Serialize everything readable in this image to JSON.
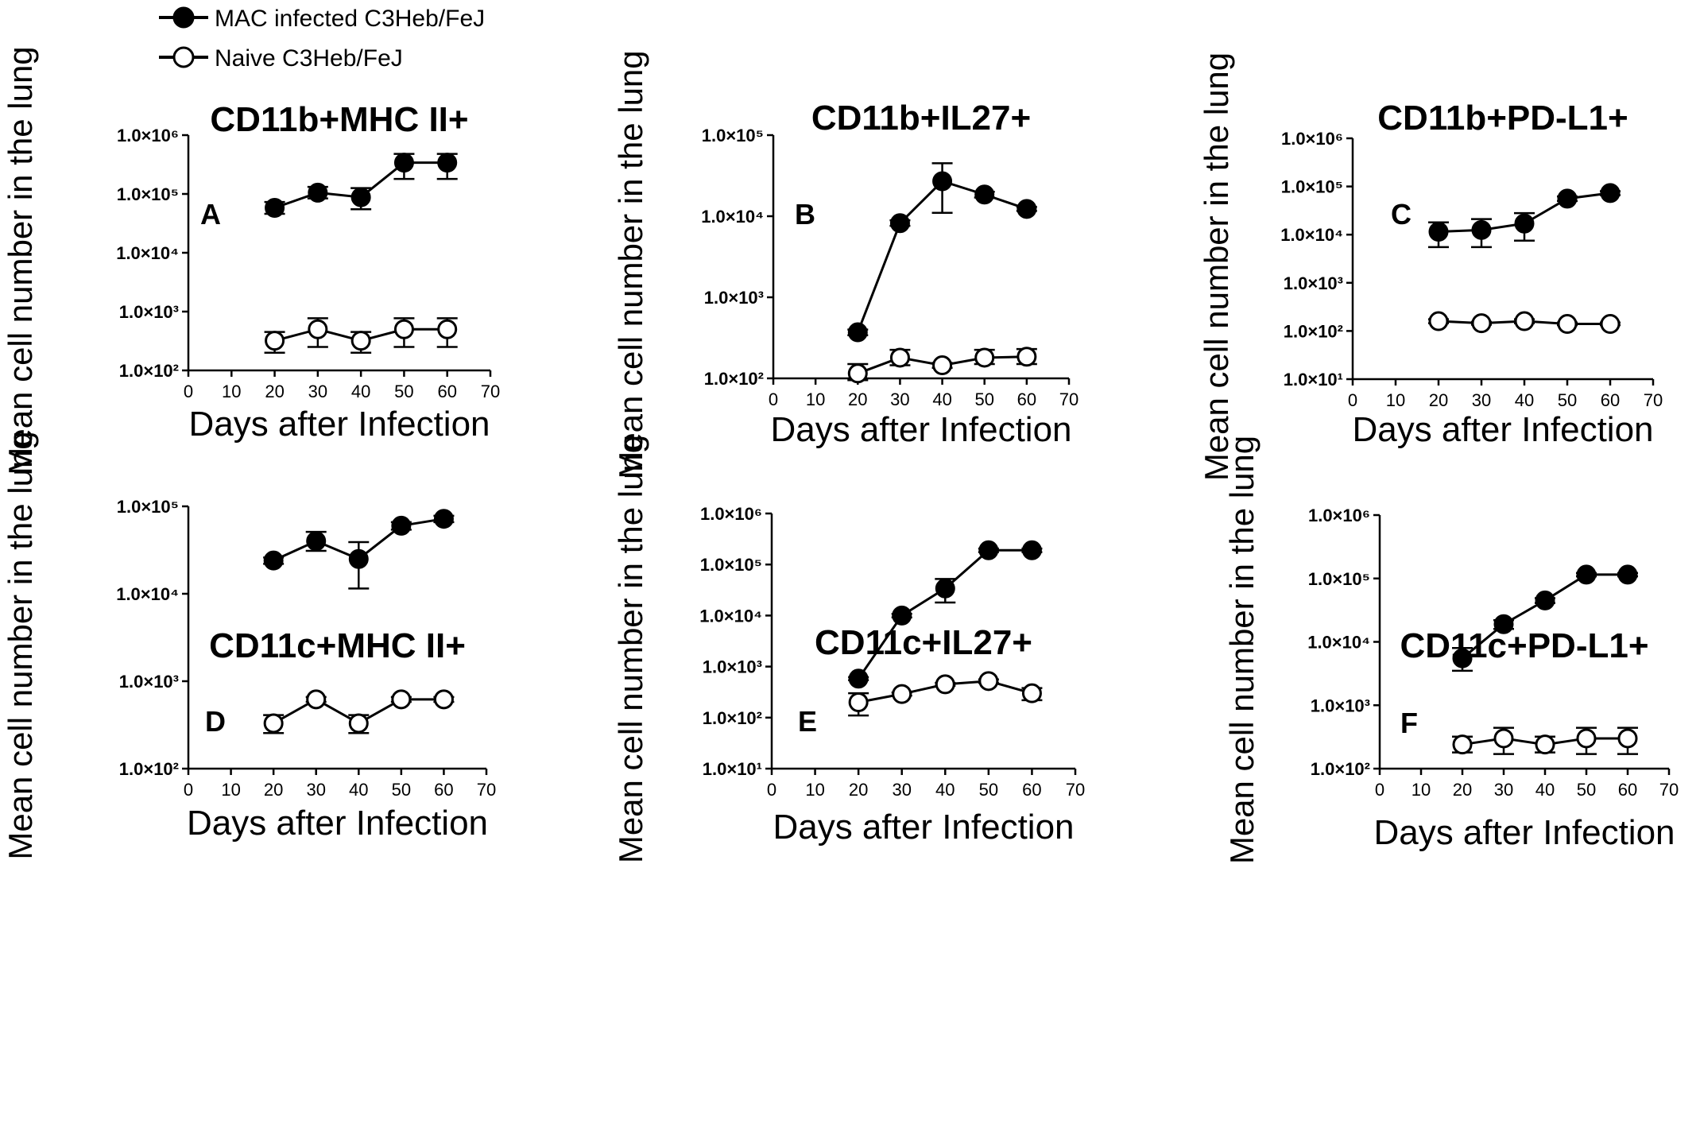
{
  "legend": {
    "infected": "MAC infected C3Heb/FeJ",
    "naive": "Naive C3Heb/FeJ"
  },
  "colors": {
    "ink": "#000000",
    "background": "#ffffff"
  },
  "chart_data": [
    {
      "id": "A",
      "type": "line",
      "title": "CD11b+MHC II+",
      "xlabel": "Days after Infection",
      "ylabel": "Mean cell number in the lung",
      "yscale": "log",
      "ylim": [
        100,
        1000000
      ],
      "xlim": [
        0,
        70
      ],
      "xticks": [
        0,
        10,
        20,
        30,
        40,
        50,
        60,
        70
      ],
      "yticks": [
        100,
        1000,
        10000,
        100000,
        1000000
      ],
      "ytick_labels": [
        "1.0×10²",
        "1.0×10³",
        "1.0×10⁴",
        "1.0×10⁵",
        "1.0×10⁶"
      ],
      "x": [
        20,
        30,
        40,
        50,
        60
      ],
      "series": [
        {
          "name": "MAC infected C3Heb/FeJ",
          "marker": "filled",
          "values": [
            58000,
            105000,
            88000,
            340000,
            340000
          ],
          "err_low": [
            46000,
            84000,
            55000,
            180000,
            180000
          ],
          "err_high": [
            73000,
            132000,
            126000,
            480000,
            480000
          ]
        },
        {
          "name": "Naive C3Heb/FeJ",
          "marker": "open",
          "values": [
            320,
            500,
            320,
            500,
            500
          ],
          "err_low": [
            200,
            250,
            200,
            250,
            250
          ],
          "err_high": [
            450,
            770,
            450,
            770,
            770
          ]
        }
      ]
    },
    {
      "id": "B",
      "type": "line",
      "title": "CD11b+IL27+",
      "xlabel": "Days after Infection",
      "ylabel": "Mean cell number in the lung",
      "yscale": "log",
      "ylim": [
        100,
        100000
      ],
      "xlim": [
        0,
        70
      ],
      "xticks": [
        0,
        10,
        20,
        30,
        40,
        50,
        60,
        70
      ],
      "yticks": [
        100,
        1000,
        10000,
        100000
      ],
      "ytick_labels": [
        "1.0×10²",
        "1.0×10³",
        "1.0×10⁴",
        "1.0×10⁵"
      ],
      "x": [
        20,
        30,
        40,
        50,
        60
      ],
      "series": [
        {
          "name": "MAC infected C3Heb/FeJ",
          "marker": "filled",
          "values": [
            370,
            8200,
            27000,
            18500,
            12300
          ],
          "err_low": [
            340,
            7600,
            11000,
            17000,
            11600
          ],
          "err_high": [
            400,
            8900,
            45000,
            20000,
            13000
          ]
        },
        {
          "name": "Naive C3Heb/FeJ",
          "marker": "open",
          "values": [
            115,
            180,
            145,
            180,
            185
          ],
          "err_low": [
            95,
            145,
            135,
            150,
            150
          ],
          "err_high": [
            150,
            225,
            155,
            225,
            230
          ]
        }
      ]
    },
    {
      "id": "C",
      "type": "line",
      "title": "CD11b+PD-L1+",
      "xlabel": "Days after Infection",
      "ylabel": "Mean cell number in the lung",
      "yscale": "log",
      "ylim": [
        10,
        1000000
      ],
      "xlim": [
        0,
        70
      ],
      "xticks": [
        0,
        10,
        20,
        30,
        40,
        50,
        60,
        70
      ],
      "yticks": [
        10,
        100,
        1000,
        10000,
        100000,
        1000000
      ],
      "ytick_labels": [
        "1.0×10¹",
        "1.0×10²",
        "1.0×10³",
        "1.0×10⁴",
        "1.0×10⁵",
        "1.0×10⁶"
      ],
      "x": [
        20,
        30,
        40,
        50,
        60
      ],
      "series": [
        {
          "name": "MAC infected C3Heb/FeJ",
          "marker": "filled",
          "values": [
            11500,
            12500,
            17000,
            56000,
            73000
          ],
          "err_low": [
            5500,
            5500,
            7500,
            50000,
            66000
          ],
          "err_high": [
            18000,
            21000,
            28000,
            62000,
            80000
          ]
        },
        {
          "name": "Naive C3Heb/FeJ",
          "marker": "open",
          "values": [
            160,
            145,
            160,
            140,
            140
          ],
          "err_low": [
            145,
            135,
            145,
            132,
            132
          ],
          "err_high": [
            175,
            155,
            175,
            150,
            150
          ]
        }
      ]
    },
    {
      "id": "D",
      "type": "line",
      "title": "CD11c+MHC II+",
      "xlabel": "Days after Infection",
      "ylabel": "Mean cell number in the lung",
      "yscale": "log",
      "ylim": [
        100,
        100000
      ],
      "xlim": [
        0,
        70
      ],
      "xticks": [
        0,
        10,
        20,
        30,
        40,
        50,
        60,
        70
      ],
      "yticks": [
        100,
        1000,
        10000,
        100000
      ],
      "ytick_labels": [
        "1.0×10²",
        "1.0×10³",
        "1.0×10⁴",
        "1.0×10⁵"
      ],
      "x": [
        20,
        30,
        40,
        50,
        60
      ],
      "series": [
        {
          "name": "MAC infected C3Heb/FeJ",
          "marker": "filled",
          "values": [
            24000,
            40000,
            25000,
            60000,
            72000
          ],
          "err_low": [
            22000,
            31000,
            11500,
            54000,
            66000
          ],
          "err_high": [
            26000,
            51000,
            39000,
            66000,
            78000
          ]
        },
        {
          "name": "Naive C3Heb/FeJ",
          "marker": "open",
          "values": [
            330,
            620,
            330,
            620,
            620
          ],
          "err_low": [
            255,
            580,
            255,
            580,
            580
          ],
          "err_high": [
            410,
            660,
            410,
            660,
            660
          ]
        }
      ]
    },
    {
      "id": "E",
      "type": "line",
      "title": "CD11c+IL27+",
      "xlabel": "Days after Infection",
      "ylabel": "Mean cell number in the lung",
      "yscale": "log",
      "ylim": [
        10,
        1000000
      ],
      "xlim": [
        0,
        70
      ],
      "xticks": [
        0,
        10,
        20,
        30,
        40,
        50,
        60,
        70
      ],
      "yticks": [
        10,
        100,
        1000,
        10000,
        100000,
        1000000
      ],
      "ytick_labels": [
        "1.0×10¹",
        "1.0×10²",
        "1.0×10³",
        "1.0×10⁴",
        "1.0×10⁵",
        "1.0×10⁶"
      ],
      "x": [
        20,
        30,
        40,
        50,
        60
      ],
      "series": [
        {
          "name": "MAC infected C3Heb/FeJ",
          "marker": "filled",
          "values": [
            580,
            10000,
            34000,
            190000,
            190000
          ],
          "err_low": [
            540,
            9200,
            18000,
            175000,
            175000
          ],
          "err_high": [
            620,
            10800,
            52000,
            205000,
            205000
          ]
        },
        {
          "name": "Naive C3Heb/FeJ",
          "marker": "open",
          "values": [
            200,
            290,
            450,
            520,
            300
          ],
          "err_low": [
            110,
            270,
            420,
            480,
            220
          ],
          "err_high": [
            300,
            310,
            480,
            560,
            380
          ]
        }
      ]
    },
    {
      "id": "F",
      "type": "line",
      "title": "CD11c+PD-L1+",
      "xlabel": "Days after Infection",
      "ylabel": "Mean cell number in the lung",
      "yscale": "log",
      "ylim": [
        100,
        1000000
      ],
      "xlim": [
        0,
        70
      ],
      "xticks": [
        0,
        10,
        20,
        30,
        40,
        50,
        60,
        70
      ],
      "yticks": [
        100,
        1000,
        10000,
        100000,
        1000000
      ],
      "ytick_labels": [
        "1.0×10²",
        "1.0×10³",
        "1.0×10⁴",
        "1.0×10⁵",
        "1.0×10⁶"
      ],
      "x": [
        20,
        30,
        40,
        50,
        60
      ],
      "series": [
        {
          "name": "MAC infected C3Heb/FeJ",
          "marker": "filled",
          "values": [
            5500,
            19000,
            45000,
            115000,
            115000
          ],
          "err_low": [
            3500,
            16000,
            41000,
            108000,
            108000
          ],
          "err_high": [
            8000,
            22000,
            49000,
            122000,
            122000
          ]
        },
        {
          "name": "Naive C3Heb/FeJ",
          "marker": "open",
          "values": [
            240,
            300,
            240,
            300,
            300
          ],
          "err_low": [
            180,
            170,
            180,
            170,
            170
          ],
          "err_high": [
            320,
            440,
            320,
            440,
            440
          ]
        }
      ]
    }
  ]
}
